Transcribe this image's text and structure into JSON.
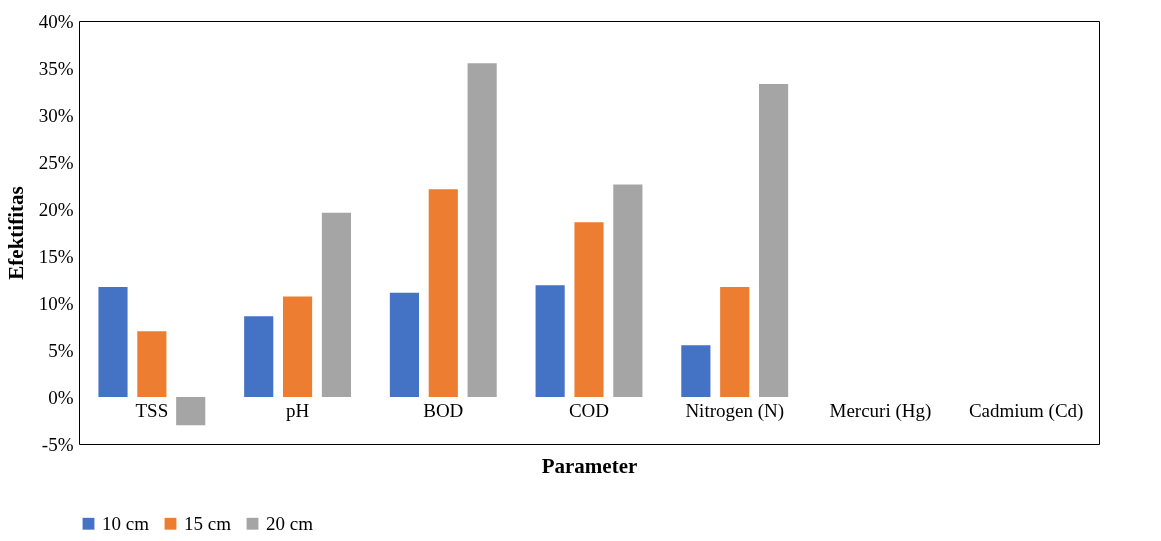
{
  "chart_data": {
    "type": "bar",
    "xlabel": "Parameter",
    "ylabel": "Efektifitas",
    "categories": [
      "TSS",
      "pH",
      "BOD",
      "COD",
      "Nitrogen (N)",
      "Mercuri (Hg)",
      "Cadmium (Cd)"
    ],
    "series": [
      {
        "name": "10 cm",
        "color": "#4472c4",
        "values": [
          11.7,
          8.6,
          11.1,
          11.9,
          5.5,
          null,
          null
        ]
      },
      {
        "name": "15 cm",
        "color": "#ed7d31",
        "values": [
          7.0,
          10.7,
          22.1,
          18.6,
          11.7,
          null,
          null
        ]
      },
      {
        "name": "20 cm",
        "color": "#a5a5a5",
        "values": [
          -3.0,
          19.6,
          35.5,
          22.6,
          33.3,
          null,
          null
        ]
      }
    ],
    "ylim": [
      -5,
      40
    ],
    "yticks": [
      {
        "value": -5,
        "label": "-5%"
      },
      {
        "value": 0,
        "label": "0%"
      },
      {
        "value": 5,
        "label": "5%"
      },
      {
        "value": 10,
        "label": "10%"
      },
      {
        "value": 15,
        "label": "15%"
      },
      {
        "value": 20,
        "label": "20%"
      },
      {
        "value": 25,
        "label": "25%"
      },
      {
        "value": 30,
        "label": "30%"
      },
      {
        "value": 35,
        "label": "35%"
      },
      {
        "value": 40,
        "label": "40%"
      }
    ],
    "grid": false,
    "legend": "bottom"
  }
}
